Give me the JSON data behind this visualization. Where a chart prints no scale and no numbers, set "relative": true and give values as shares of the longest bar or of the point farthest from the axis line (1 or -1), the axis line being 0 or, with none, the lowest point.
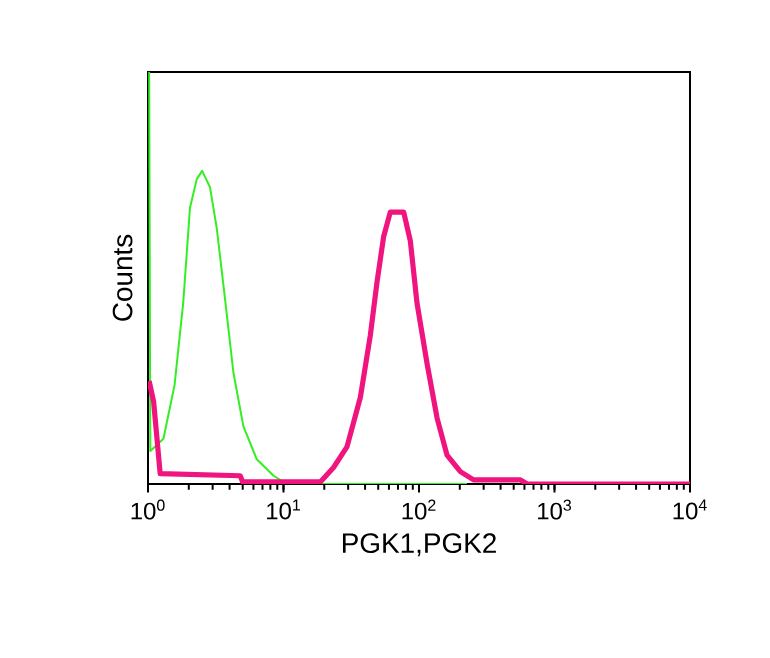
{
  "chart_data": {
    "type": "line",
    "xlabel": "PGK1,PGK2",
    "ylabel": "Counts",
    "relative": true,
    "log": "x",
    "xlim": [
      1,
      10000
    ],
    "xticks": [
      {
        "value": 1,
        "label": "10$^{0}$"
      },
      {
        "value": 10,
        "label": "10$^{1}$"
      },
      {
        "value": 100,
        "label": "10$^{2}$"
      },
      {
        "value": 1000,
        "label": "10$^{3}$"
      },
      {
        "value": 10000,
        "label": "10$^{4}$"
      }
    ],
    "series": [
      {
        "color": "#33ee22",
        "x": [
          1.02,
          1.04,
          1.3,
          1.57,
          1.82,
          2.04,
          2.29,
          2.51,
          2.87,
          3.22,
          3.73,
          4.27,
          5.06,
          6.35,
          8.44,
          10.6,
          226
        ],
        "values": [
          1.0,
          0.08,
          0.11,
          0.24,
          0.44,
          0.67,
          0.74,
          0.76,
          0.72,
          0.62,
          0.44,
          0.27,
          0.14,
          0.06,
          0.02,
          0,
          0
        ]
      },
      {
        "color": "#f0147f",
        "x": [
          1.02,
          1.1,
          1.23,
          4.79,
          5.0,
          18.7,
          23.4,
          29.4,
          36.9,
          43.7,
          49.0,
          54.8,
          61.4,
          77.1,
          86.3,
          96.6,
          115,
          136,
          161,
          202,
          253,
          561,
          628,
          10000
        ],
        "values": [
          0.25,
          0.2,
          0.025,
          0.02,
          0.005,
          0.005,
          0.04,
          0.09,
          0.21,
          0.36,
          0.49,
          0.6,
          0.66,
          0.66,
          0.59,
          0.44,
          0.29,
          0.16,
          0.07,
          0.03,
          0.01,
          0.01,
          0,
          0
        ]
      }
    ]
  }
}
